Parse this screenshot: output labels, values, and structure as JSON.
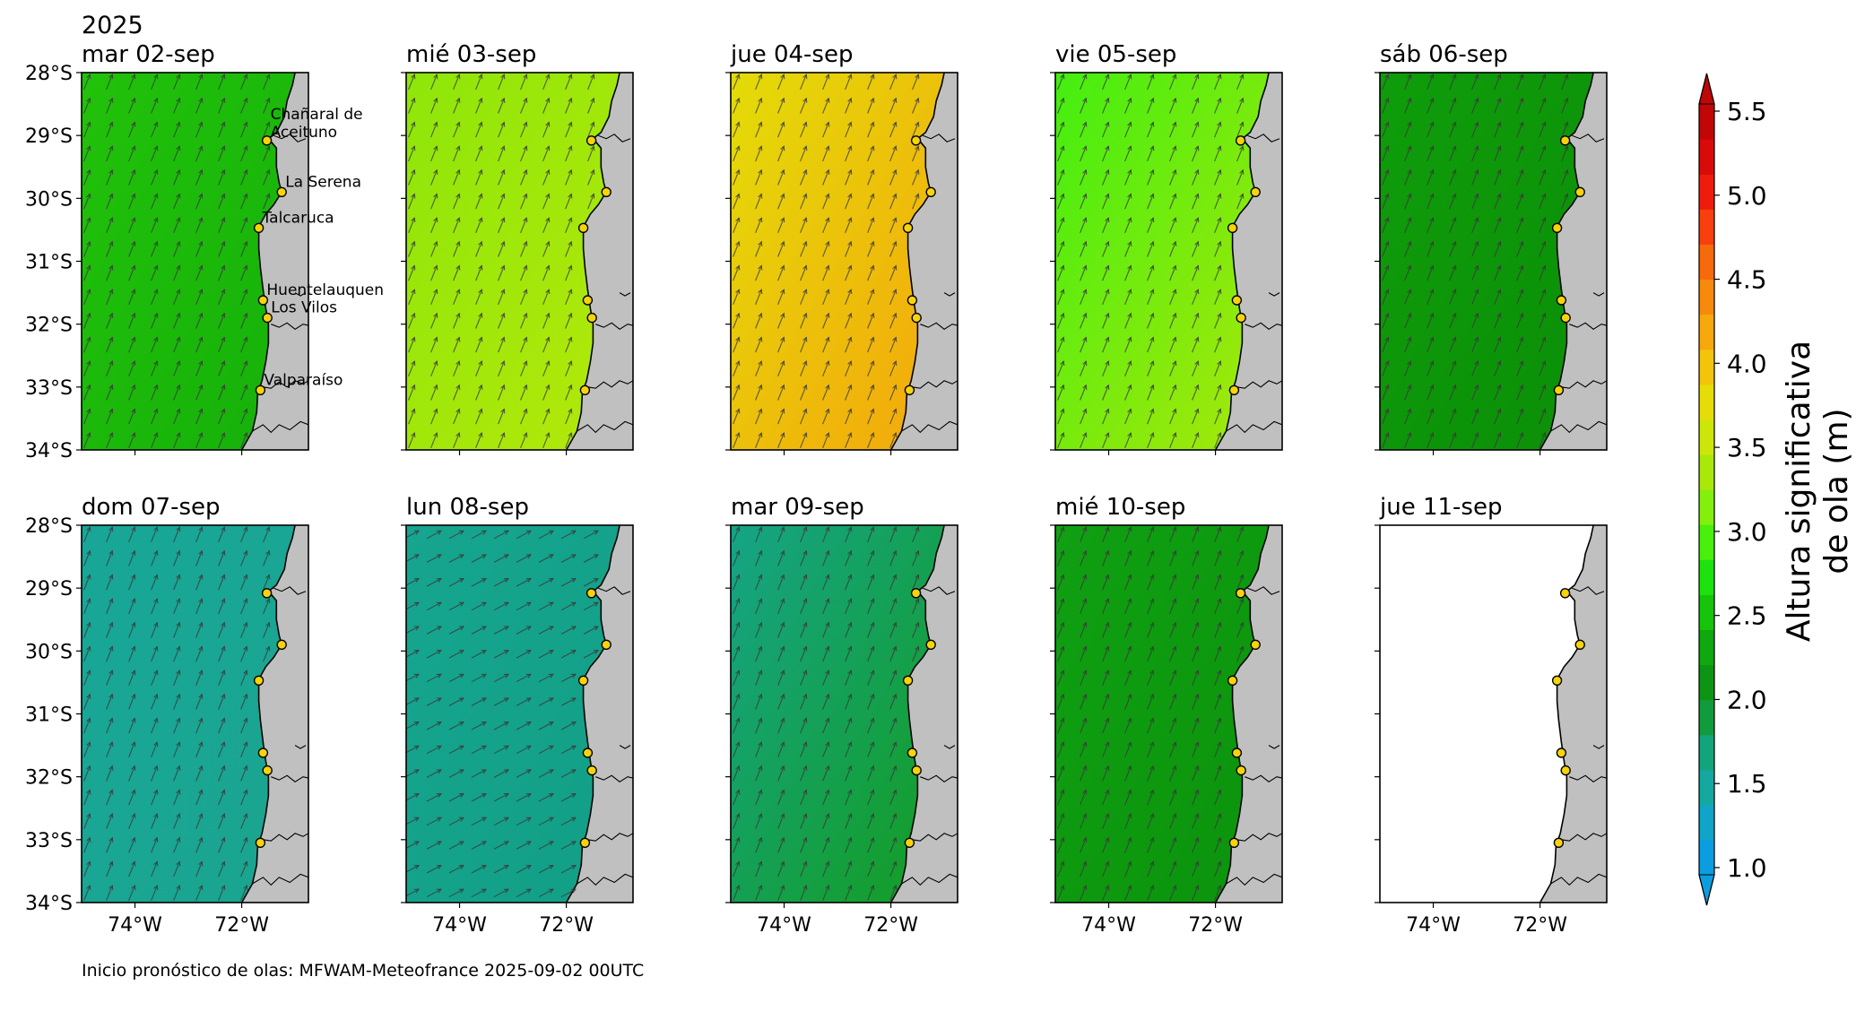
{
  "figure": {
    "year_label": "2025",
    "footer": "Inicio pronóstico de olas: MFWAM-Meteofrance 2025-09-02 00UTC"
  },
  "panels": [
    {
      "title": "mar 02-sep",
      "color": "#22c20a",
      "shade": "#15b00a",
      "empty": false,
      "lat_ticks": true,
      "lon_ticks": false
    },
    {
      "title": "mié 03-sep",
      "color": "#8ee60a",
      "shade": "#b4e80a",
      "empty": false,
      "lat_ticks": false,
      "lon_ticks": false
    },
    {
      "title": "jue 04-sep",
      "color": "#e3dc08",
      "shade": "#f5a60c",
      "empty": false,
      "lat_ticks": false,
      "lon_ticks": false
    },
    {
      "title": "vie 05-sep",
      "color": "#43ee10",
      "shade": "#a9e80a",
      "empty": false,
      "lat_ticks": false,
      "lon_ticks": false
    },
    {
      "title": "sáb 06-sep",
      "color": "#0f9d0a",
      "shade": "#0b8f08",
      "empty": false,
      "lat_ticks": false,
      "lon_ticks": false
    },
    {
      "title": "dom 07-sep",
      "color": "#18a698",
      "shade": "#1aa58f",
      "empty": false,
      "lat_ticks": true,
      "lon_ticks": true
    },
    {
      "title": "lun 08-sep",
      "color": "#16a58f",
      "shade": "#129f86",
      "empty": false,
      "lat_ticks": false,
      "lon_ticks": true
    },
    {
      "title": "mar 09-sep",
      "color": "#15a487",
      "shade": "#149d20",
      "empty": false,
      "lat_ticks": false,
      "lon_ticks": true
    },
    {
      "title": "mié 10-sep",
      "color": "#10a012",
      "shade": "#0b930c",
      "empty": false,
      "lat_ticks": false,
      "lon_ticks": true
    },
    {
      "title": "jue 11-sep",
      "color": "#ffffff",
      "shade": "#ffffff",
      "empty": true,
      "lat_ticks": false,
      "lon_ticks": true
    }
  ],
  "axes": {
    "lat_labels": [
      "28°S",
      "29°S",
      "30°S",
      "31°S",
      "32°S",
      "33°S",
      "34°S"
    ],
    "lon_labels": [
      "74°W",
      "72°W"
    ]
  },
  "places": [
    {
      "name": "Chañaral de\nAceituno"
    },
    {
      "name": "La Serena"
    },
    {
      "name": "Talcaruca"
    },
    {
      "name": "Huentelauquen"
    },
    {
      "name": "Los Vilos"
    },
    {
      "name": "Valparaíso"
    }
  ],
  "colorbar": {
    "label_line1": "Altura significativa",
    "label_line2": "de ola (m)",
    "ticks": [
      "1.0",
      "1.5",
      "2.0",
      "2.5",
      "3.0",
      "3.5",
      "4.0",
      "4.5",
      "5.0",
      "5.5"
    ],
    "min": 1.0,
    "max": 5.5,
    "colors": [
      "#0a9ee0",
      "#10a5c8",
      "#14a89f",
      "#14a47a",
      "#129b3c",
      "#0e9414",
      "#0fa80e",
      "#16c40c",
      "#1ee20c",
      "#48f00c",
      "#82f00c",
      "#aae80a",
      "#cde60a",
      "#e6dd08",
      "#f2c40a",
      "#f6a80c",
      "#f78a0c",
      "#f76a0c",
      "#f7400c",
      "#ee1c0c",
      "#d80a0a",
      "#c00606"
    ],
    "extend_low_color": "#0a9ee0",
    "extend_high_color": "#c00606"
  }
}
